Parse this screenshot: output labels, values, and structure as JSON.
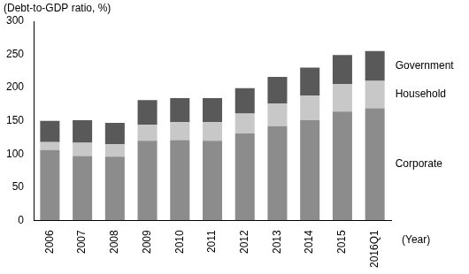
{
  "chart_data": {
    "type": "bar",
    "stacked": true,
    "ylabel": "(Debt-to-GDP ratio, %)",
    "xlabel": "(Year)",
    "categories": [
      "2006",
      "2007",
      "2008",
      "2009",
      "2010",
      "2011",
      "2012",
      "2013",
      "2014",
      "2015",
      "2016Q1"
    ],
    "series": [
      {
        "name": "Corporate",
        "color": "#8c8c8c",
        "values": [
          106,
          97,
          96,
          120,
          121,
          120,
          131,
          142,
          151,
          164,
          169
        ]
      },
      {
        "name": "Household",
        "color": "#c8c8c8",
        "values": [
          12,
          20,
          19,
          24,
          27,
          28,
          30,
          34,
          37,
          41,
          41
        ]
      },
      {
        "name": "Government",
        "color": "#595959",
        "values": [
          32,
          34,
          32,
          37,
          36,
          36,
          38,
          40,
          42,
          44,
          45
        ]
      }
    ],
    "ylim": [
      0,
      300
    ],
    "yticks": [
      0,
      50,
      100,
      150,
      200,
      250,
      300
    ],
    "grid": false
  }
}
